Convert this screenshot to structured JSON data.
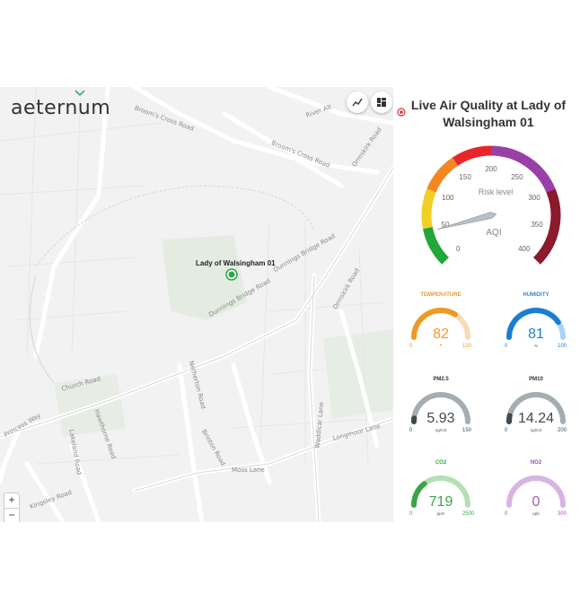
{
  "brand": {
    "logo_text": "aeternum"
  },
  "map": {
    "marker_label": "Lady of Walsingham 01",
    "streets": [
      "Broom's Cross Road",
      "River Alt",
      "Broom's Cross Road",
      "Dunnings Bridge Road",
      "Dunnings Bridge Road",
      "Church Road",
      "Netherton Road",
      "Princess Way",
      "Ormskirk Road",
      "Waddicar Lane",
      "Longmoor Lane",
      "Moss Lane",
      "Kingsley Road",
      "Brinton Road",
      "Hawthorne Road",
      "Lakeland Road",
      "Ormskirk Road"
    ],
    "zoom_in": "+",
    "zoom_out": "−",
    "icons": {
      "trend": "trend-line-icon",
      "layout": "dashboard-layout-icon",
      "pin": "location-pin-icon"
    }
  },
  "panel": {
    "title": "Live Air Quality at Lady of Walsingham 01"
  },
  "aqi": {
    "label": "Risk level",
    "unit": "AQI",
    "ticks": [
      "0",
      "50",
      "100",
      "150",
      "200",
      "250",
      "300",
      "350",
      "400"
    ],
    "min": 0,
    "max": 400,
    "value": 45,
    "colors": [
      "#22a83a",
      "#f3cf24",
      "#f5871f",
      "#e8262a",
      "#9a3fa8",
      "#8b1a2c"
    ]
  },
  "gauges": [
    {
      "key": "temperature",
      "title": "TEMPERATURE",
      "value": "82",
      "unit": "",
      "min": "0",
      "max": "120",
      "fraction": 0.68,
      "color": "#ee9a27",
      "track": "#f6ddb6",
      "titleColor": "#e39a35"
    },
    {
      "key": "humidity",
      "title": "HUMIDITY",
      "value": "81",
      "unit": "%",
      "min": "0",
      "max": "100",
      "fraction": 0.81,
      "color": "#1a7fd2",
      "track": "#a9d4f5",
      "titleColor": "#3c86d0"
    },
    {
      "key": "pm25",
      "title": "PM2.5",
      "value": "5.93",
      "unit": "ug/m3",
      "min": "0",
      "max": "150",
      "fraction": 0.04,
      "color": "#3e4a50",
      "track": "#a4adb2",
      "titleColor": "#333333"
    },
    {
      "key": "pm10",
      "title": "PM10",
      "value": "14.24",
      "unit": "ug/m3",
      "min": "0",
      "max": "200",
      "fraction": 0.07,
      "color": "#3e4a50",
      "track": "#a4adb2",
      "titleColor": "#333333"
    },
    {
      "key": "co2",
      "title": "CO2",
      "value": "719",
      "unit": "ppm",
      "min": "0",
      "max": "2500",
      "fraction": 0.29,
      "color": "#3da548",
      "track": "#b6dfb5",
      "titleColor": "#3aa449"
    },
    {
      "key": "no2",
      "title": "NO2",
      "value": "0",
      "unit": "ppb",
      "min": "0",
      "max": "300",
      "fraction": 0.0,
      "color": "#a35bb8",
      "track": "#d7b4e2",
      "titleColor": "#9a4fb3"
    }
  ]
}
